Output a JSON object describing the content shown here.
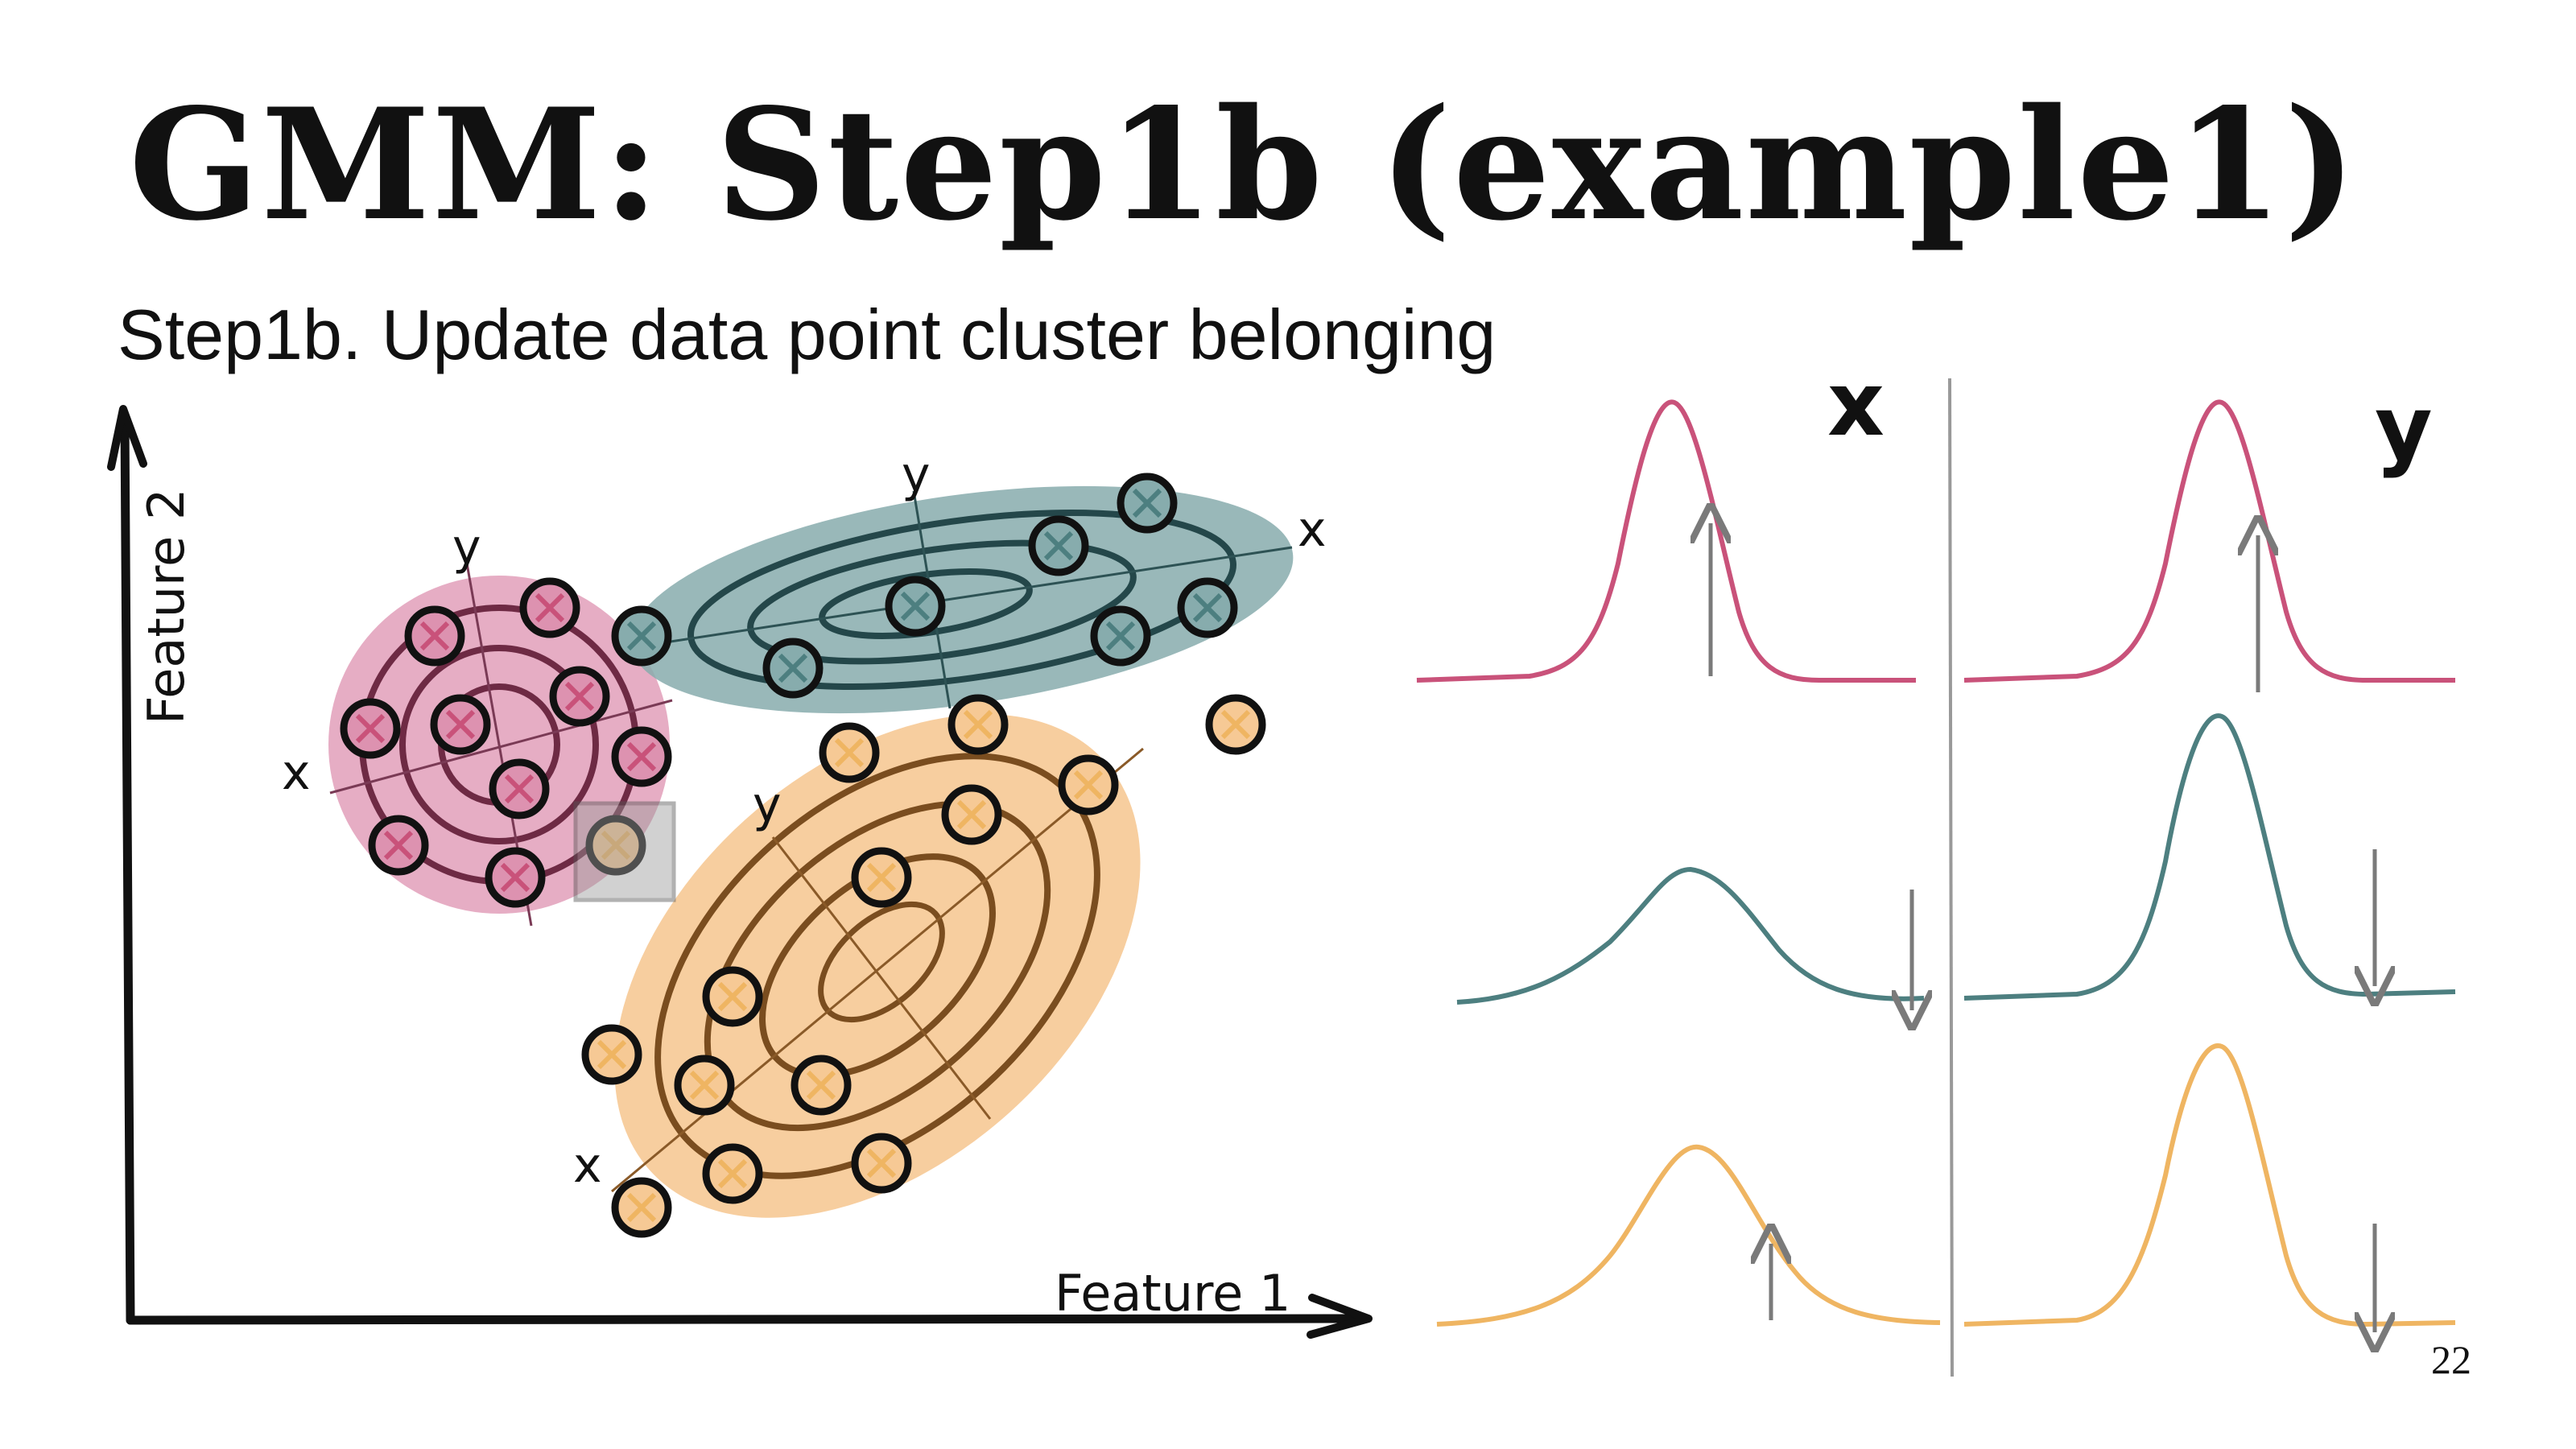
{
  "slide": {
    "title": "GMM: Step1b (example1)",
    "subtitle": "Step1b. Update data point cluster belonging",
    "page_number": "22"
  },
  "scatter": {
    "x_axis_label": "Feature 1",
    "y_axis_label": "Feature 2",
    "cluster_axis_x": "x",
    "cluster_axis_y": "y"
  },
  "distributions": {
    "x_header": "x",
    "y_header": "y"
  },
  "colors": {
    "pink": "#c9527a",
    "pink_fill": "#dd92b0",
    "teal": "#4d7f80",
    "teal_fill": "#87acad",
    "orange": "#efb562",
    "orange_fill": "#f6c995",
    "arrow": "#7a7a7a"
  }
}
